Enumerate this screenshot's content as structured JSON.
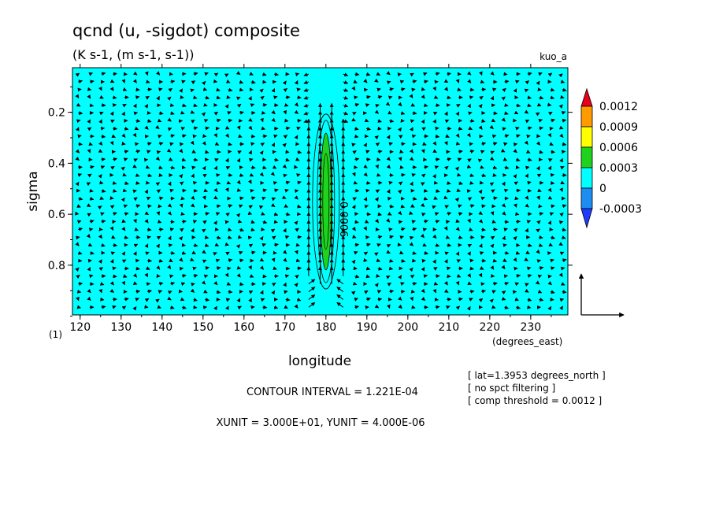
{
  "header": {
    "title": "qcnd (u, -sigdot) composite",
    "subtitle": "(K s-1, (m s-1, s-1))",
    "run_name": "kuo_a"
  },
  "chart_data": {
    "type": "heatmap",
    "title": "qcnd (u, -sigdot) composite",
    "xlabel": "longitude",
    "xunit_label": "(degrees_east)",
    "ylabel": "sigma",
    "panel_index": "(1)",
    "x_ticks": [
      120,
      130,
      140,
      150,
      160,
      170,
      180,
      190,
      200,
      210,
      220,
      230
    ],
    "y_ticks": [
      0.2,
      0.4,
      0.6,
      0.8
    ],
    "xlim": [
      118.125,
      239.0625
    ],
    "ylim": [
      0.995,
      0.025
    ],
    "colorbar": {
      "labels": [
        "0.0012",
        "0.0009",
        "0.0006",
        "0.0003",
        "0",
        "-0.0003"
      ],
      "colors": [
        "#e8001c",
        "#ff9a00",
        "#ffff00",
        "#1ed21e",
        "#00ffff",
        "#1e8cf0",
        "#1e3cff"
      ]
    },
    "background_color": "#00ffff",
    "feature": {
      "center_lon": 180,
      "sigma_range": [
        0.25,
        0.85
      ],
      "peak_range": [
        0.3,
        0.8
      ],
      "contour_label": "0.0006"
    },
    "vector_field": {
      "x_spacing_deg": 2.8125,
      "reference_vector": {
        "xunit": 30,
        "yunit": 4e-06
      }
    }
  },
  "footer": {
    "contour_interval": "CONTOUR INTERVAL = 1.221E-04",
    "units": "XUNIT = 3.000E+01, YUNIT = 4.000E-06",
    "notes": [
      "[ lat=1.3953 degrees_north ]",
      "[ no spct filtering ]",
      "[ comp threshold = 0.0012 ]"
    ]
  }
}
